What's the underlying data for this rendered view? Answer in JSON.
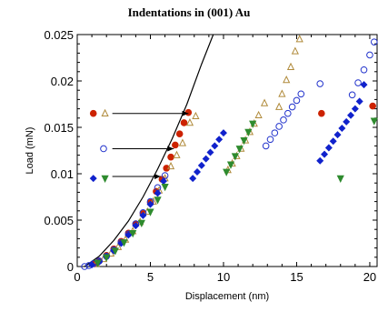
{
  "chart_data": {
    "type": "scatter",
    "title": "Indentations in (001) Au",
    "xlabel": "Displacement (nm)",
    "ylabel": "Load (mN)",
    "xlim": [
      0,
      20.5
    ],
    "ylim": [
      0,
      0.025
    ],
    "xticks": [
      0,
      5,
      10,
      15,
      20
    ],
    "xtick_labels": [
      "0",
      "5",
      "10",
      "15",
      "20"
    ],
    "yticks": [
      0,
      0.005,
      0.01,
      0.015,
      0.02,
      0.025
    ],
    "ytick_labels": [
      "0",
      "0.005",
      "0.01",
      "0.015",
      "0.02",
      "0.025"
    ],
    "grid": false,
    "colors": {
      "red": "#cc2200",
      "tan": "#b08a3a",
      "blue_open": "#2233cc",
      "blue_fill": "#1122cc",
      "green": "#2e8b2e",
      "curve": "#000000"
    },
    "curve": {
      "x": [
        0.5,
        1.5,
        2.5,
        3.5,
        4.5,
        5.5,
        6.5,
        7.5,
        8.5,
        9.3
      ],
      "y": [
        0,
        0.0011,
        0.0028,
        0.0049,
        0.0075,
        0.0105,
        0.0138,
        0.0175,
        0.0218,
        0.025
      ]
    },
    "series": [
      {
        "marker": "circle-filled",
        "color": "red",
        "x": [
          1.2,
          1.5,
          2.0,
          2.5,
          3.0,
          3.5,
          4.0,
          4.5,
          5.0,
          5.4,
          5.8,
          6.1,
          6.4,
          6.7,
          7.0,
          7.3,
          7.6,
          16.7,
          20.2
        ],
        "y": [
          0.0003,
          0.0006,
          0.0012,
          0.0019,
          0.0027,
          0.0036,
          0.0046,
          0.0057,
          0.0069,
          0.0081,
          0.0094,
          0.0106,
          0.0118,
          0.0131,
          0.0143,
          0.0155,
          0.0166,
          0.0165,
          0.0173
        ]
      },
      {
        "marker": "triangle-up-open",
        "color": "tan",
        "x": [
          1.3,
          1.8,
          2.3,
          2.8,
          3.3,
          3.8,
          4.3,
          4.8,
          5.2,
          5.6,
          6.0,
          6.4,
          6.8,
          7.2,
          7.7,
          8.1,
          10.3,
          10.6,
          10.9,
          11.2,
          11.5,
          11.8,
          12.1,
          12.4,
          12.8,
          13.8,
          14.0,
          14.3,
          14.6,
          14.9,
          15.2
        ],
        "y": [
          0.0003,
          0.0008,
          0.0014,
          0.0021,
          0.0029,
          0.0038,
          0.0048,
          0.0059,
          0.007,
          0.0082,
          0.0095,
          0.0108,
          0.012,
          0.0133,
          0.0155,
          0.0162,
          0.0104,
          0.0111,
          0.0119,
          0.0127,
          0.0136,
          0.0145,
          0.0154,
          0.0163,
          0.0176,
          0.0172,
          0.0186,
          0.0201,
          0.0215,
          0.0232,
          0.0245
        ]
      },
      {
        "marker": "circle-open",
        "color": "blue_open",
        "x": [
          0.5,
          0.8,
          1.1,
          1.5,
          2.0,
          2.5,
          3.0,
          3.5,
          4.0,
          4.5,
          5.0,
          5.5,
          6.0,
          12.9,
          13.2,
          13.5,
          13.8,
          14.1,
          14.4,
          14.7,
          15.0,
          15.3,
          16.6,
          18.8,
          19.2,
          19.6,
          20.0,
          20.3
        ],
        "y": [
          0,
          0.0001,
          0.0003,
          0.0006,
          0.0011,
          0.0018,
          0.0026,
          0.0035,
          0.0046,
          0.0058,
          0.007,
          0.0085,
          0.0098,
          0.013,
          0.0137,
          0.0144,
          0.0151,
          0.0158,
          0.0165,
          0.0172,
          0.0179,
          0.0186,
          0.0197,
          0.0185,
          0.0198,
          0.0212,
          0.0228,
          0.0242
        ]
      },
      {
        "marker": "diamond-filled",
        "color": "blue_fill",
        "x": [
          1.0,
          1.5,
          2.0,
          2.5,
          3.0,
          3.5,
          4.0,
          4.5,
          5.0,
          5.5,
          5.9,
          7.9,
          8.2,
          8.5,
          8.8,
          9.1,
          9.4,
          9.7,
          10.0,
          16.6,
          16.9,
          17.2,
          17.5,
          17.8,
          18.1,
          18.4,
          18.7,
          19.0,
          19.3,
          19.6
        ],
        "y": [
          0.0002,
          0.0005,
          0.0011,
          0.0017,
          0.0025,
          0.0034,
          0.0044,
          0.0055,
          0.0067,
          0.0079,
          0.0092,
          0.0095,
          0.0102,
          0.0109,
          0.0116,
          0.0123,
          0.013,
          0.0137,
          0.0144,
          0.0114,
          0.0121,
          0.0128,
          0.0135,
          0.0142,
          0.0149,
          0.0156,
          0.0163,
          0.017,
          0.0178,
          0.0196
        ]
      },
      {
        "marker": "triangle-down-filled",
        "color": "green",
        "x": [
          1.4,
          2.0,
          2.6,
          3.2,
          3.8,
          4.4,
          5.0,
          5.5,
          6.0,
          10.2,
          10.5,
          10.8,
          11.1,
          11.4,
          11.7,
          12.0,
          18.0,
          20.3
        ],
        "y": [
          0.0004,
          0.001,
          0.0017,
          0.0026,
          0.0036,
          0.0047,
          0.0059,
          0.0072,
          0.0086,
          0.0102,
          0.011,
          0.0119,
          0.0127,
          0.0136,
          0.0145,
          0.0154,
          0.0095,
          0.0157
        ]
      }
    ],
    "legend_markers": [
      {
        "marker": "circle-filled",
        "color": "red",
        "x": 1.1,
        "y": 0.0165
      },
      {
        "marker": "triangle-up-open",
        "color": "tan",
        "x": 1.9,
        "y": 0.0165
      },
      {
        "marker": "circle-open",
        "color": "blue_open",
        "x": 1.8,
        "y": 0.0127
      },
      {
        "marker": "diamond-filled",
        "color": "blue_fill",
        "x": 1.1,
        "y": 0.0095
      },
      {
        "marker": "triangle-down-filled",
        "color": "green",
        "x": 1.9,
        "y": 0.0095
      }
    ],
    "arrows": [
      {
        "from": [
          2.4,
          0.0165
        ],
        "to": [
          7.6,
          0.0165
        ]
      },
      {
        "from": [
          2.4,
          0.0127
        ],
        "to": [
          6.6,
          0.0127
        ]
      },
      {
        "from": [
          2.4,
          0.0097
        ],
        "to": [
          5.7,
          0.0097
        ]
      }
    ]
  }
}
